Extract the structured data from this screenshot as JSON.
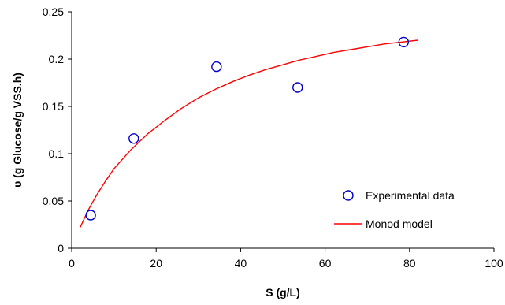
{
  "chart_data": {
    "type": "scatter",
    "xlabel": "S (g/L)",
    "ylabel": "υ (g Glucose/g VSS.h)",
    "xlim": [
      0,
      100
    ],
    "ylim": [
      0,
      0.25
    ],
    "xticks": [
      0,
      20,
      40,
      60,
      80,
      100
    ],
    "yticks": [
      0,
      0.05,
      0.1,
      0.15,
      0.2,
      0.25
    ],
    "xtick_labels": [
      "0",
      "20",
      "40",
      "60",
      "80",
      "100"
    ],
    "ytick_labels": [
      "0",
      "0.05",
      "0.1",
      "0.15",
      "0.2",
      "0.25"
    ],
    "grid": false,
    "legend_position": "bottom-right",
    "series": [
      {
        "name": "Experimental data",
        "kind": "scatter",
        "marker": "open-circle",
        "color": "#0000cc",
        "x": [
          4.5,
          14.7,
          34.3,
          53.5,
          78.6
        ],
        "y": [
          0.035,
          0.116,
          0.192,
          0.17,
          0.218
        ]
      },
      {
        "name": "Monod model",
        "kind": "line",
        "color": "#ff0000",
        "x": [
          2,
          4,
          6,
          8,
          10,
          14,
          18,
          22,
          26,
          30,
          34,
          38,
          42,
          46,
          50,
          54,
          58,
          62,
          66,
          70,
          74,
          78,
          82
        ],
        "y": [
          0.022,
          0.041,
          0.057,
          0.071,
          0.084,
          0.104,
          0.121,
          0.135,
          0.148,
          0.159,
          0.168,
          0.176,
          0.183,
          0.189,
          0.194,
          0.199,
          0.203,
          0.207,
          0.21,
          0.213,
          0.216,
          0.218,
          0.22
        ]
      }
    ]
  }
}
